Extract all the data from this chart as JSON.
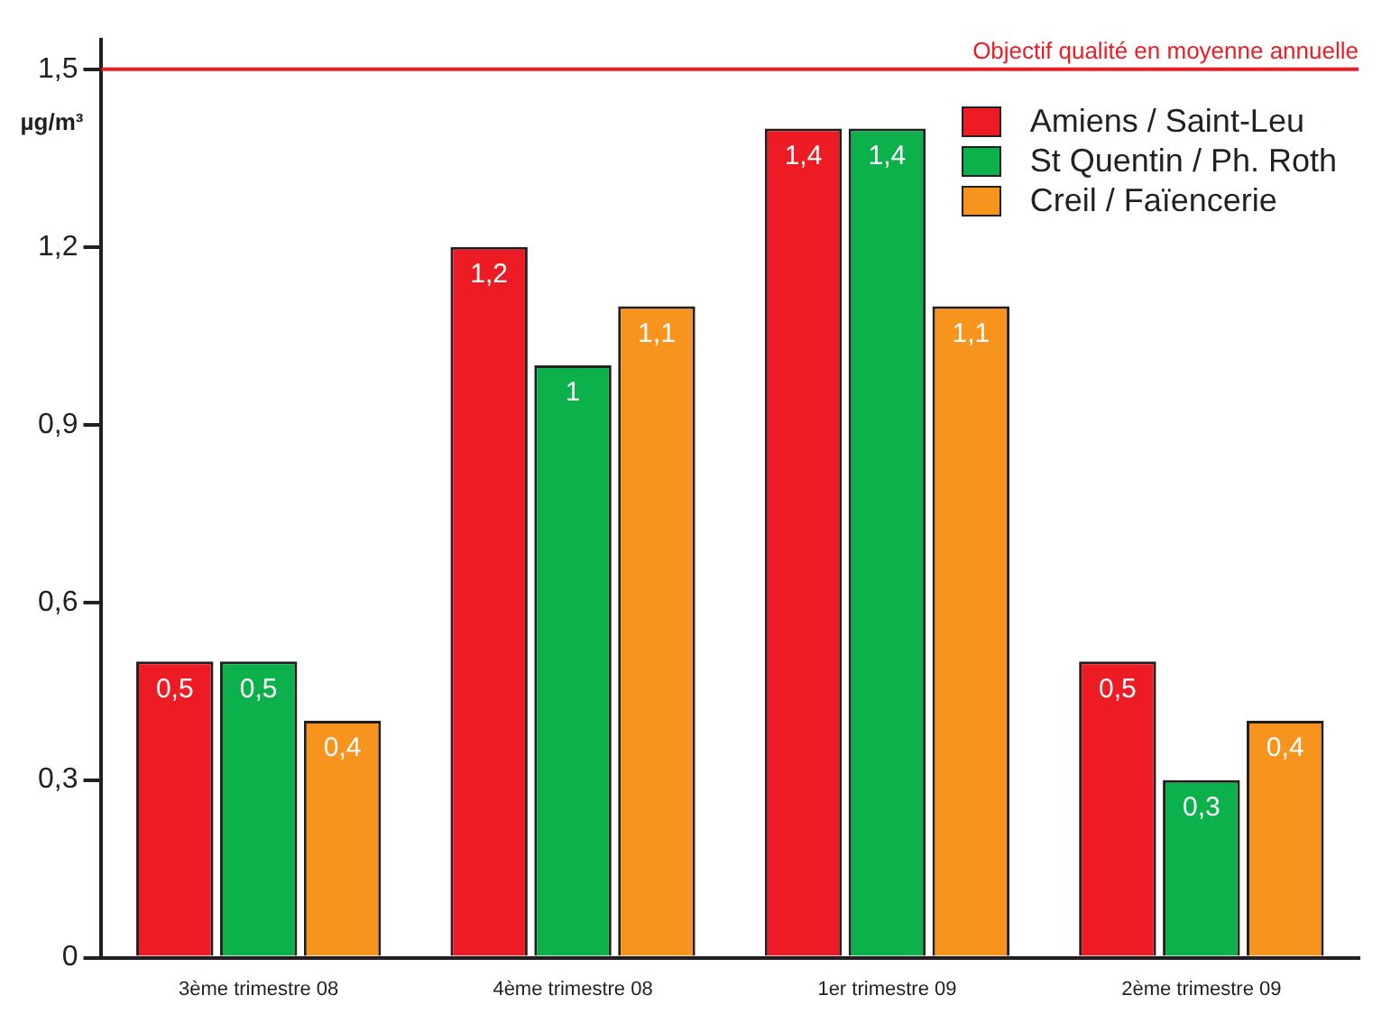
{
  "chart_data": {
    "type": "bar",
    "ylabel": "µg/m³",
    "categories": [
      "3ème trimestre 08",
      "4ème trimestre 08",
      "1er trimestre 09",
      "2ème trimestre 09"
    ],
    "series": [
      {
        "name": "Amiens / Saint-Leu",
        "color": "#ed1c24",
        "values": [
          0.5,
          1.2,
          1.4,
          0.5
        ],
        "value_labels": [
          "0,5",
          "1,2",
          "1,4",
          "0,5"
        ]
      },
      {
        "name": "St Quentin / Ph. Roth",
        "color": "#0db14b",
        "values": [
          0.5,
          1.0,
          1.4,
          0.3
        ],
        "value_labels": [
          "0,5",
          "1",
          "1,4",
          "0,3"
        ]
      },
      {
        "name": "Creil / Faïencerie",
        "color": "#f7941d",
        "values": [
          0.4,
          1.1,
          1.1,
          0.4
        ],
        "value_labels": [
          "0,4",
          "1,1",
          "1,1",
          "0,4"
        ]
      }
    ],
    "ylim": [
      0,
      1.55
    ],
    "yticks": [
      {
        "value": 0,
        "label": "0"
      },
      {
        "value": 0.3,
        "label": "0,3"
      },
      {
        "value": 0.6,
        "label": "0,6"
      },
      {
        "value": 0.9,
        "label": "0,9"
      },
      {
        "value": 1.2,
        "label": "1,2"
      },
      {
        "value": 1.5,
        "label": "1,5"
      }
    ],
    "ref_lines": [
      {
        "axis": "y",
        "value": 1.5,
        "label": "Objectif qualité en moyenne annuelle",
        "color": "#ed1c24"
      }
    ],
    "grid": false,
    "legend": "top right"
  }
}
